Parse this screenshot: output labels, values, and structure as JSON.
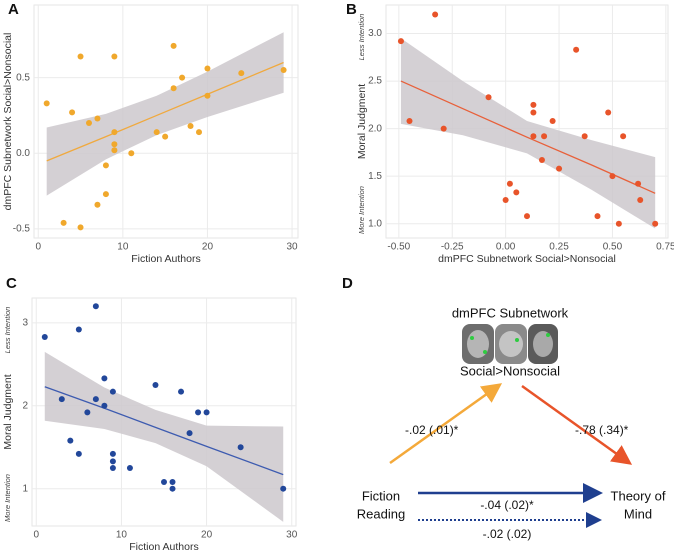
{
  "chart_data": [
    {
      "type": "scatter",
      "panel_label": "A",
      "xlabel": "Fiction Authors",
      "ylabel": "dmPFC Subnetwork Social>Nonsocial",
      "color": "#f0a82c",
      "line_color": "#f0a93e",
      "band_color": "#cdc8cc",
      "x": [
        1,
        4,
        5,
        5,
        3,
        6,
        7,
        7,
        8,
        8,
        9,
        9,
        9,
        9,
        11,
        14,
        15,
        16,
        16,
        17,
        18,
        19,
        20,
        20,
        24,
        29
      ],
      "values": [
        0.33,
        0.27,
        0.64,
        -0.49,
        -0.46,
        0.2,
        0.23,
        -0.34,
        -0.08,
        -0.27,
        0.64,
        0.14,
        0.06,
        0.02,
        0.0,
        0.14,
        0.11,
        0.71,
        0.43,
        0.5,
        0.18,
        0.14,
        0.56,
        0.38,
        0.53,
        0.55
      ],
      "fit": {
        "x": [
          1,
          8,
          14,
          20,
          29
        ],
        "y": [
          -0.05,
          0.11,
          0.25,
          0.39,
          0.6
        ],
        "lower": [
          -0.28,
          -0.04,
          0.12,
          0.24,
          0.4
        ],
        "upper": [
          0.17,
          0.26,
          0.38,
          0.54,
          0.8
        ]
      },
      "xlim": [
        -0.5,
        30.7
      ],
      "ylim": [
        -0.56,
        0.98
      ],
      "xticks": [
        0,
        10,
        20,
        30
      ],
      "yticks": [
        -0.5,
        {
          "value": 0,
          "label": "0.0"
        },
        0.5
      ],
      "grid": true
    },
    {
      "type": "scatter",
      "panel_label": "B",
      "xlabel": "dmPFC Subnetwork Social>Nonsocial",
      "ylabel": "Moral Judgment",
      "y_top_note": "Less Intention",
      "y_bottom_note": "More Intention",
      "color": "#e8542a",
      "line_color": "#e8603a",
      "band_color": "#cdc8cc",
      "x": [
        -0.49,
        -0.45,
        -0.33,
        -0.29,
        -0.08,
        0.0,
        0.02,
        0.05,
        0.1,
        0.13,
        0.13,
        0.13,
        0.17,
        0.18,
        0.22,
        0.25,
        0.33,
        0.37,
        0.43,
        0.48,
        0.5,
        0.53,
        0.55,
        0.62,
        0.63,
        0.7
      ],
      "values": [
        2.92,
        2.08,
        3.2,
        2.0,
        2.33,
        1.25,
        1.42,
        1.33,
        1.08,
        2.25,
        2.17,
        1.92,
        1.67,
        1.92,
        2.08,
        1.58,
        2.83,
        1.92,
        1.08,
        2.17,
        1.5,
        1.0,
        1.92,
        1.42,
        1.25,
        1.0
      ],
      "fit": {
        "x": [
          -0.49,
          -0.2,
          0.1,
          0.4,
          0.7
        ],
        "y": [
          2.5,
          2.21,
          1.91,
          1.62,
          1.32
        ],
        "lower": [
          2.05,
          1.93,
          1.74,
          1.36,
          0.95
        ],
        "upper": [
          2.95,
          2.5,
          2.08,
          1.88,
          1.7
        ]
      },
      "xlim": [
        -0.56,
        0.76
      ],
      "ylim": [
        0.85,
        3.3
      ],
      "xticks": [
        {
          "value": -0.5,
          "label": "-0.50"
        },
        -0.25,
        {
          "value": 0,
          "label": "0.00"
        },
        0.25,
        {
          "value": 0.5,
          "label": "0.50"
        },
        0.75
      ],
      "yticks": [
        {
          "value": 1,
          "label": "1.0"
        },
        1.5,
        {
          "value": 2,
          "label": "2.0"
        },
        2.5,
        {
          "value": 3,
          "label": "3.0"
        }
      ],
      "grid": true
    },
    {
      "type": "scatter",
      "panel_label": "C",
      "xlabel": "Fiction Authors",
      "ylabel": "Moral Judgment",
      "y_top_note": "Less Intention",
      "y_bottom_note": "More Intention",
      "color": "#22479a",
      "line_color": "#3d5bb0",
      "band_color": "#cdc8cc",
      "x": [
        1,
        3,
        4,
        5,
        5,
        6,
        7,
        7,
        8,
        8,
        9,
        9,
        9,
        9,
        11,
        14,
        15,
        16,
        16,
        17,
        18,
        19,
        20,
        24,
        29
      ],
      "values": [
        2.83,
        2.08,
        1.58,
        2.92,
        1.42,
        1.92,
        3.2,
        2.08,
        2.33,
        2.0,
        2.17,
        1.42,
        1.33,
        1.25,
        1.25,
        2.25,
        1.08,
        1.0,
        1.08,
        2.17,
        1.67,
        1.92,
        1.92,
        1.5,
        1.0
      ],
      "fit": {
        "x": [
          1,
          8,
          14,
          20,
          29
        ],
        "y": [
          2.23,
          1.97,
          1.74,
          1.51,
          1.17
        ],
        "lower": [
          1.82,
          1.72,
          1.55,
          1.27,
          0.6
        ],
        "upper": [
          2.65,
          2.22,
          1.95,
          1.76,
          1.75
        ]
      },
      "xlim": [
        -0.5,
        30.5
      ],
      "ylim": [
        0.55,
        3.3
      ],
      "xticks": [
        0,
        10,
        20,
        30
      ],
      "yticks": [
        1,
        2,
        3
      ],
      "grid": true
    }
  ],
  "diagram": {
    "panel_label": "D",
    "mediator": [
      "dmPFC Subnetwork",
      "Social>Nonsocial"
    ],
    "source": [
      "Fiction",
      "Reading"
    ],
    "target": [
      "Theory of",
      "Mind"
    ],
    "path_a": "-.02 (.01)*",
    "path_b": "-.78 (.34)*",
    "path_c": "-.04 (.02)*",
    "path_c_prime": "-.02 (.02)"
  }
}
